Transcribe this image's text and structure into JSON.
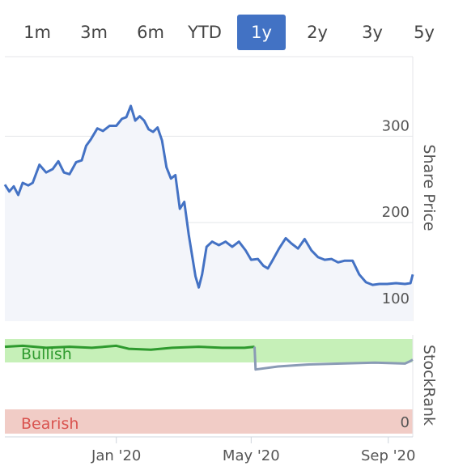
{
  "range_selector": {
    "options": [
      "1m",
      "3m",
      "6m",
      "YTD",
      "1y",
      "2y",
      "3y",
      "5y"
    ],
    "selected": "1y"
  },
  "colors": {
    "accent": "#4272c4",
    "price_line": "#4472c4",
    "bullish_band": "#c6f0b8",
    "bearish_band": "#f1ccc6",
    "bullish_line": "#2e9a2e",
    "neutral_line": "#8a9bb5",
    "bearish_text": "#d9534f"
  },
  "chart_data": [
    {
      "type": "line",
      "ylabel": "Share Price",
      "yticks": [
        100,
        200,
        300
      ],
      "ylim": [
        86,
        392
      ],
      "xlim": [
        "2019-09-23",
        "2020-09-23"
      ],
      "grid": true,
      "series": [
        {
          "values": [
            [
              "2019-09-23",
              244
            ],
            [
              "2019-09-27",
              236
            ],
            [
              "2019-10-01",
              242
            ],
            [
              "2019-10-05",
              232
            ],
            [
              "2019-10-09",
              246
            ],
            [
              "2019-10-14",
              243
            ],
            [
              "2019-10-18",
              246
            ],
            [
              "2019-10-24",
              267
            ],
            [
              "2019-10-30",
              258
            ],
            [
              "2019-11-05",
              262
            ],
            [
              "2019-11-10",
              271
            ],
            [
              "2019-11-15",
              258
            ],
            [
              "2019-11-20",
              256
            ],
            [
              "2019-11-26",
              270
            ],
            [
              "2019-12-01",
              272
            ],
            [
              "2019-12-05",
              289
            ],
            [
              "2019-12-09",
              296
            ],
            [
              "2019-12-15",
              309
            ],
            [
              "2019-12-20",
              306
            ],
            [
              "2019-12-26",
              312
            ],
            [
              "2020-01-01",
              312
            ],
            [
              "2020-01-06",
              320
            ],
            [
              "2020-01-10",
              322
            ],
            [
              "2020-01-14",
              335
            ],
            [
              "2020-01-18",
              318
            ],
            [
              "2020-01-22",
              323
            ],
            [
              "2020-01-26",
              318
            ],
            [
              "2020-01-30",
              308
            ],
            [
              "2020-02-03",
              305
            ],
            [
              "2020-02-07",
              310
            ],
            [
              "2020-02-11",
              295
            ],
            [
              "2020-02-15",
              264
            ],
            [
              "2020-02-19",
              251
            ],
            [
              "2020-02-23",
              255
            ],
            [
              "2020-02-27",
              216
            ],
            [
              "2020-03-02",
              224
            ],
            [
              "2020-03-06",
              186
            ],
            [
              "2020-03-12",
              138
            ],
            [
              "2020-03-15",
              125
            ],
            [
              "2020-03-18",
              140
            ],
            [
              "2020-03-22",
              172
            ],
            [
              "2020-03-27",
              178
            ],
            [
              "2020-04-02",
              174
            ],
            [
              "2020-04-08",
              178
            ],
            [
              "2020-04-14",
              172
            ],
            [
              "2020-04-20",
              178
            ],
            [
              "2020-04-26",
              168
            ],
            [
              "2020-05-01",
              157
            ],
            [
              "2020-05-07",
              158
            ],
            [
              "2020-05-12",
              150
            ],
            [
              "2020-05-16",
              147
            ],
            [
              "2020-05-20",
              156
            ],
            [
              "2020-05-26",
              170
            ],
            [
              "2020-06-01",
              182
            ],
            [
              "2020-06-06",
              176
            ],
            [
              "2020-06-12",
              170
            ],
            [
              "2020-06-18",
              181
            ],
            [
              "2020-06-24",
              168
            ],
            [
              "2020-06-30",
              160
            ],
            [
              "2020-07-06",
              157
            ],
            [
              "2020-07-12",
              158
            ],
            [
              "2020-07-18",
              154
            ],
            [
              "2020-07-24",
              156
            ],
            [
              "2020-07-31",
              156
            ],
            [
              "2020-08-06",
              140
            ],
            [
              "2020-08-12",
              131
            ],
            [
              "2020-08-18",
              128
            ],
            [
              "2020-08-24",
              129
            ],
            [
              "2020-08-31",
              129
            ],
            [
              "2020-09-08",
              130
            ],
            [
              "2020-09-16",
              129
            ],
            [
              "2020-09-21",
              130
            ],
            [
              "2020-09-23",
              140
            ]
          ]
        }
      ]
    },
    {
      "type": "line",
      "ylabel": "StockRank",
      "yticks": [
        0
      ],
      "ylim": [
        0,
        100
      ],
      "bands": [
        "Bullish",
        "Bearish"
      ],
      "xticks": [
        "Jan '20",
        "May '20",
        "Sep '20"
      ],
      "xtick_dates": [
        "2020-01-01",
        "2020-05-01",
        "2020-09-01"
      ],
      "series": [
        {
          "values": [
            [
              "2019-09-23",
              88
            ],
            [
              "2019-10-09",
              89
            ],
            [
              "2019-10-30",
              87
            ],
            [
              "2019-11-20",
              88
            ],
            [
              "2019-12-10",
              87
            ],
            [
              "2020-01-01",
              89
            ],
            [
              "2020-01-12",
              86
            ],
            [
              "2020-02-01",
              85
            ],
            [
              "2020-02-20",
              87
            ],
            [
              "2020-03-15",
              88
            ],
            [
              "2020-04-05",
              87
            ],
            [
              "2020-04-25",
              87
            ],
            [
              "2020-05-04",
              88
            ],
            [
              "2020-05-05",
              65
            ],
            [
              "2020-05-25",
              68
            ],
            [
              "2020-06-20",
              70
            ],
            [
              "2020-07-20",
              71
            ],
            [
              "2020-08-20",
              72
            ],
            [
              "2020-09-16",
              71
            ],
            [
              "2020-09-20",
              73
            ],
            [
              "2020-09-23",
              75
            ]
          ]
        }
      ]
    }
  ]
}
